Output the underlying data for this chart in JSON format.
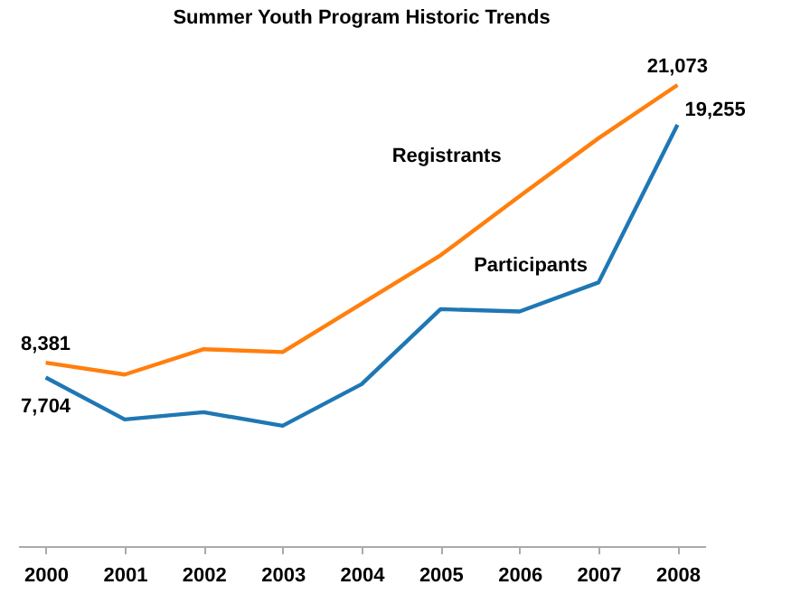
{
  "chart_data": {
    "type": "line",
    "title": "Summer Youth Program Historic Trends",
    "categories": [
      "2000",
      "2001",
      "2002",
      "2003",
      "2004",
      "2005",
      "2006",
      "2007",
      "2008"
    ],
    "series": [
      {
        "name": "Registrants",
        "color": "#ff7f0e",
        "values": [
          8381,
          7840,
          9000,
          8870,
          11080,
          13290,
          15990,
          18640,
          21073
        ],
        "value_labels": [
          "8,381",
          null,
          null,
          null,
          null,
          null,
          null,
          null,
          "21,073"
        ]
      },
      {
        "name": "Participants",
        "color": "#1f77b4",
        "values": [
          7704,
          5790,
          6120,
          5500,
          7400,
          10830,
          10720,
          12050,
          19255
        ],
        "value_labels": [
          "7,704",
          null,
          null,
          null,
          null,
          null,
          null,
          null,
          "19,255"
        ]
      }
    ],
    "tick_labels": "x",
    "grid": false,
    "legend": false,
    "marker": "none",
    "line_style": "solid"
  }
}
